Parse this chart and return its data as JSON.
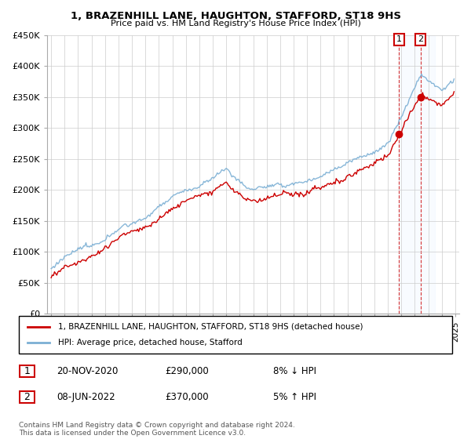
{
  "title": "1, BRAZENHILL LANE, HAUGHTON, STAFFORD, ST18 9HS",
  "subtitle": "Price paid vs. HM Land Registry's House Price Index (HPI)",
  "property_label": "1, BRAZENHILL LANE, HAUGHTON, STAFFORD, ST18 9HS (detached house)",
  "hpi_label": "HPI: Average price, detached house, Stafford",
  "footer": "Contains HM Land Registry data © Crown copyright and database right 2024.\nThis data is licensed under the Open Government Licence v3.0.",
  "transactions": [
    {
      "num": 1,
      "date": "20-NOV-2020",
      "price": "£290,000",
      "hpi_rel": "8% ↓ HPI"
    },
    {
      "num": 2,
      "date": "08-JUN-2022",
      "price": "£370,000",
      "hpi_rel": "5% ↑ HPI"
    }
  ],
  "t1_year": 2020.833,
  "t2_year": 2022.417,
  "t1_price": 290000,
  "t2_price": 370000,
  "property_color": "#cc0000",
  "hpi_color": "#7bafd4",
  "highlight_bgcolor": "#ddeeff",
  "ylim": [
    0,
    450000
  ],
  "yticks": [
    0,
    50000,
    100000,
    150000,
    200000,
    250000,
    300000,
    350000,
    400000,
    450000
  ],
  "ytick_labels": [
    "£0",
    "£50K",
    "£100K",
    "£150K",
    "£200K",
    "£250K",
    "£300K",
    "£350K",
    "£400K",
    "£450K"
  ],
  "xstart": 1995,
  "xend": 2025
}
